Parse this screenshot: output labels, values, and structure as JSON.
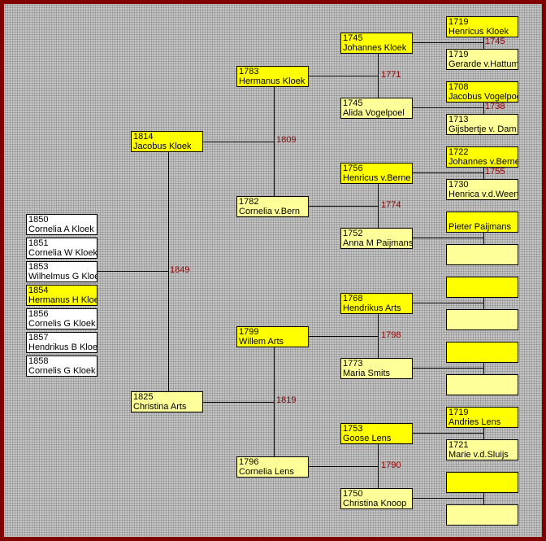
{
  "colors": {
    "border": "#800000",
    "male": "#ffff00",
    "female": "#ffff99",
    "child": "#ffffff",
    "marriage_year": "#8b0000"
  },
  "children": [
    {
      "year": "1850",
      "name": "Cornelia A Kloek",
      "highlight": false
    },
    {
      "year": "1851",
      "name": "Cornelia W Kloek",
      "highlight": false
    },
    {
      "year": "1853",
      "name": "Wilhelmus G Kloek",
      "highlight": false
    },
    {
      "year": "1854",
      "name": "Hermanus H Kloek",
      "highlight": true
    },
    {
      "year": "1856",
      "name": "Cornelis G Kloek",
      "highlight": false
    },
    {
      "year": "1857",
      "name": "Hendrikus B Kloek",
      "highlight": false
    },
    {
      "year": "1858",
      "name": "Cornelis G Kloek",
      "highlight": false
    }
  ],
  "generation1": [
    {
      "year": "1814",
      "name": "Jacobus Kloek",
      "sex": "male"
    },
    {
      "year": "1825",
      "name": "Christina Arts",
      "sex": "female"
    }
  ],
  "generation2": [
    {
      "year": "1783",
      "name": "Hermanus Kloek",
      "sex": "male"
    },
    {
      "year": "1782",
      "name": "Cornelia v.Bern",
      "sex": "female"
    },
    {
      "year": "1799",
      "name": "Willem Arts",
      "sex": "male"
    },
    {
      "year": "1796",
      "name": "Cornelia Lens",
      "sex": "female"
    }
  ],
  "generation3": [
    {
      "year": "1745",
      "name": "Johannes Kloek",
      "sex": "male"
    },
    {
      "year": "1745",
      "name": "Alida Vogelpoel",
      "sex": "female"
    },
    {
      "year": "1756",
      "name": "Henricus v.Berne",
      "sex": "male"
    },
    {
      "year": "1752",
      "name": "Anna M Paijmans",
      "sex": "female"
    },
    {
      "year": "1768",
      "name": "Hendrikus Arts",
      "sex": "male"
    },
    {
      "year": "1773",
      "name": "Maria Smits",
      "sex": "female"
    },
    {
      "year": "1753",
      "name": "Goose Lens",
      "sex": "male"
    },
    {
      "year": "1750",
      "name": "Christina Knoop",
      "sex": "female"
    }
  ],
  "generation4": [
    {
      "year": "1719",
      "name": "Henricus Kloek",
      "sex": "male"
    },
    {
      "year": "1719",
      "name": "Gerarde v.Hattum",
      "sex": "female"
    },
    {
      "year": "1708",
      "name": "Jacobus Vogelpoel",
      "sex": "male"
    },
    {
      "year": "1713",
      "name": "Gijsbertje v. Dam",
      "sex": "female"
    },
    {
      "year": "1722",
      "name": "Johannes v.Berne",
      "sex": "male"
    },
    {
      "year": "1730",
      "name": "Henrica v.d.Weert",
      "sex": "female"
    },
    {
      "year": "",
      "name": "Pieter Paijmans",
      "sex": "male"
    },
    {
      "year": "",
      "name": "",
      "sex": "female"
    },
    {
      "year": "",
      "name": "",
      "sex": "male"
    },
    {
      "year": "",
      "name": "",
      "sex": "female"
    },
    {
      "year": "",
      "name": "",
      "sex": "male"
    },
    {
      "year": "",
      "name": "",
      "sex": "female"
    },
    {
      "year": "1719",
      "name": "Andries Lens",
      "sex": "male"
    },
    {
      "year": "1721",
      "name": "Marie v.d.Sluijs",
      "sex": "female"
    },
    {
      "year": "",
      "name": "",
      "sex": "male"
    },
    {
      "year": "",
      "name": "",
      "sex": "female"
    }
  ],
  "marriages": {
    "children_parents": "1849",
    "generation1": [
      "1809",
      "1819"
    ],
    "generation2": [
      "1771",
      "1774",
      "1798",
      "1790"
    ],
    "generation3": [
      "1745",
      "1738",
      "1755",
      "",
      "",
      "",
      "",
      ""
    ]
  }
}
